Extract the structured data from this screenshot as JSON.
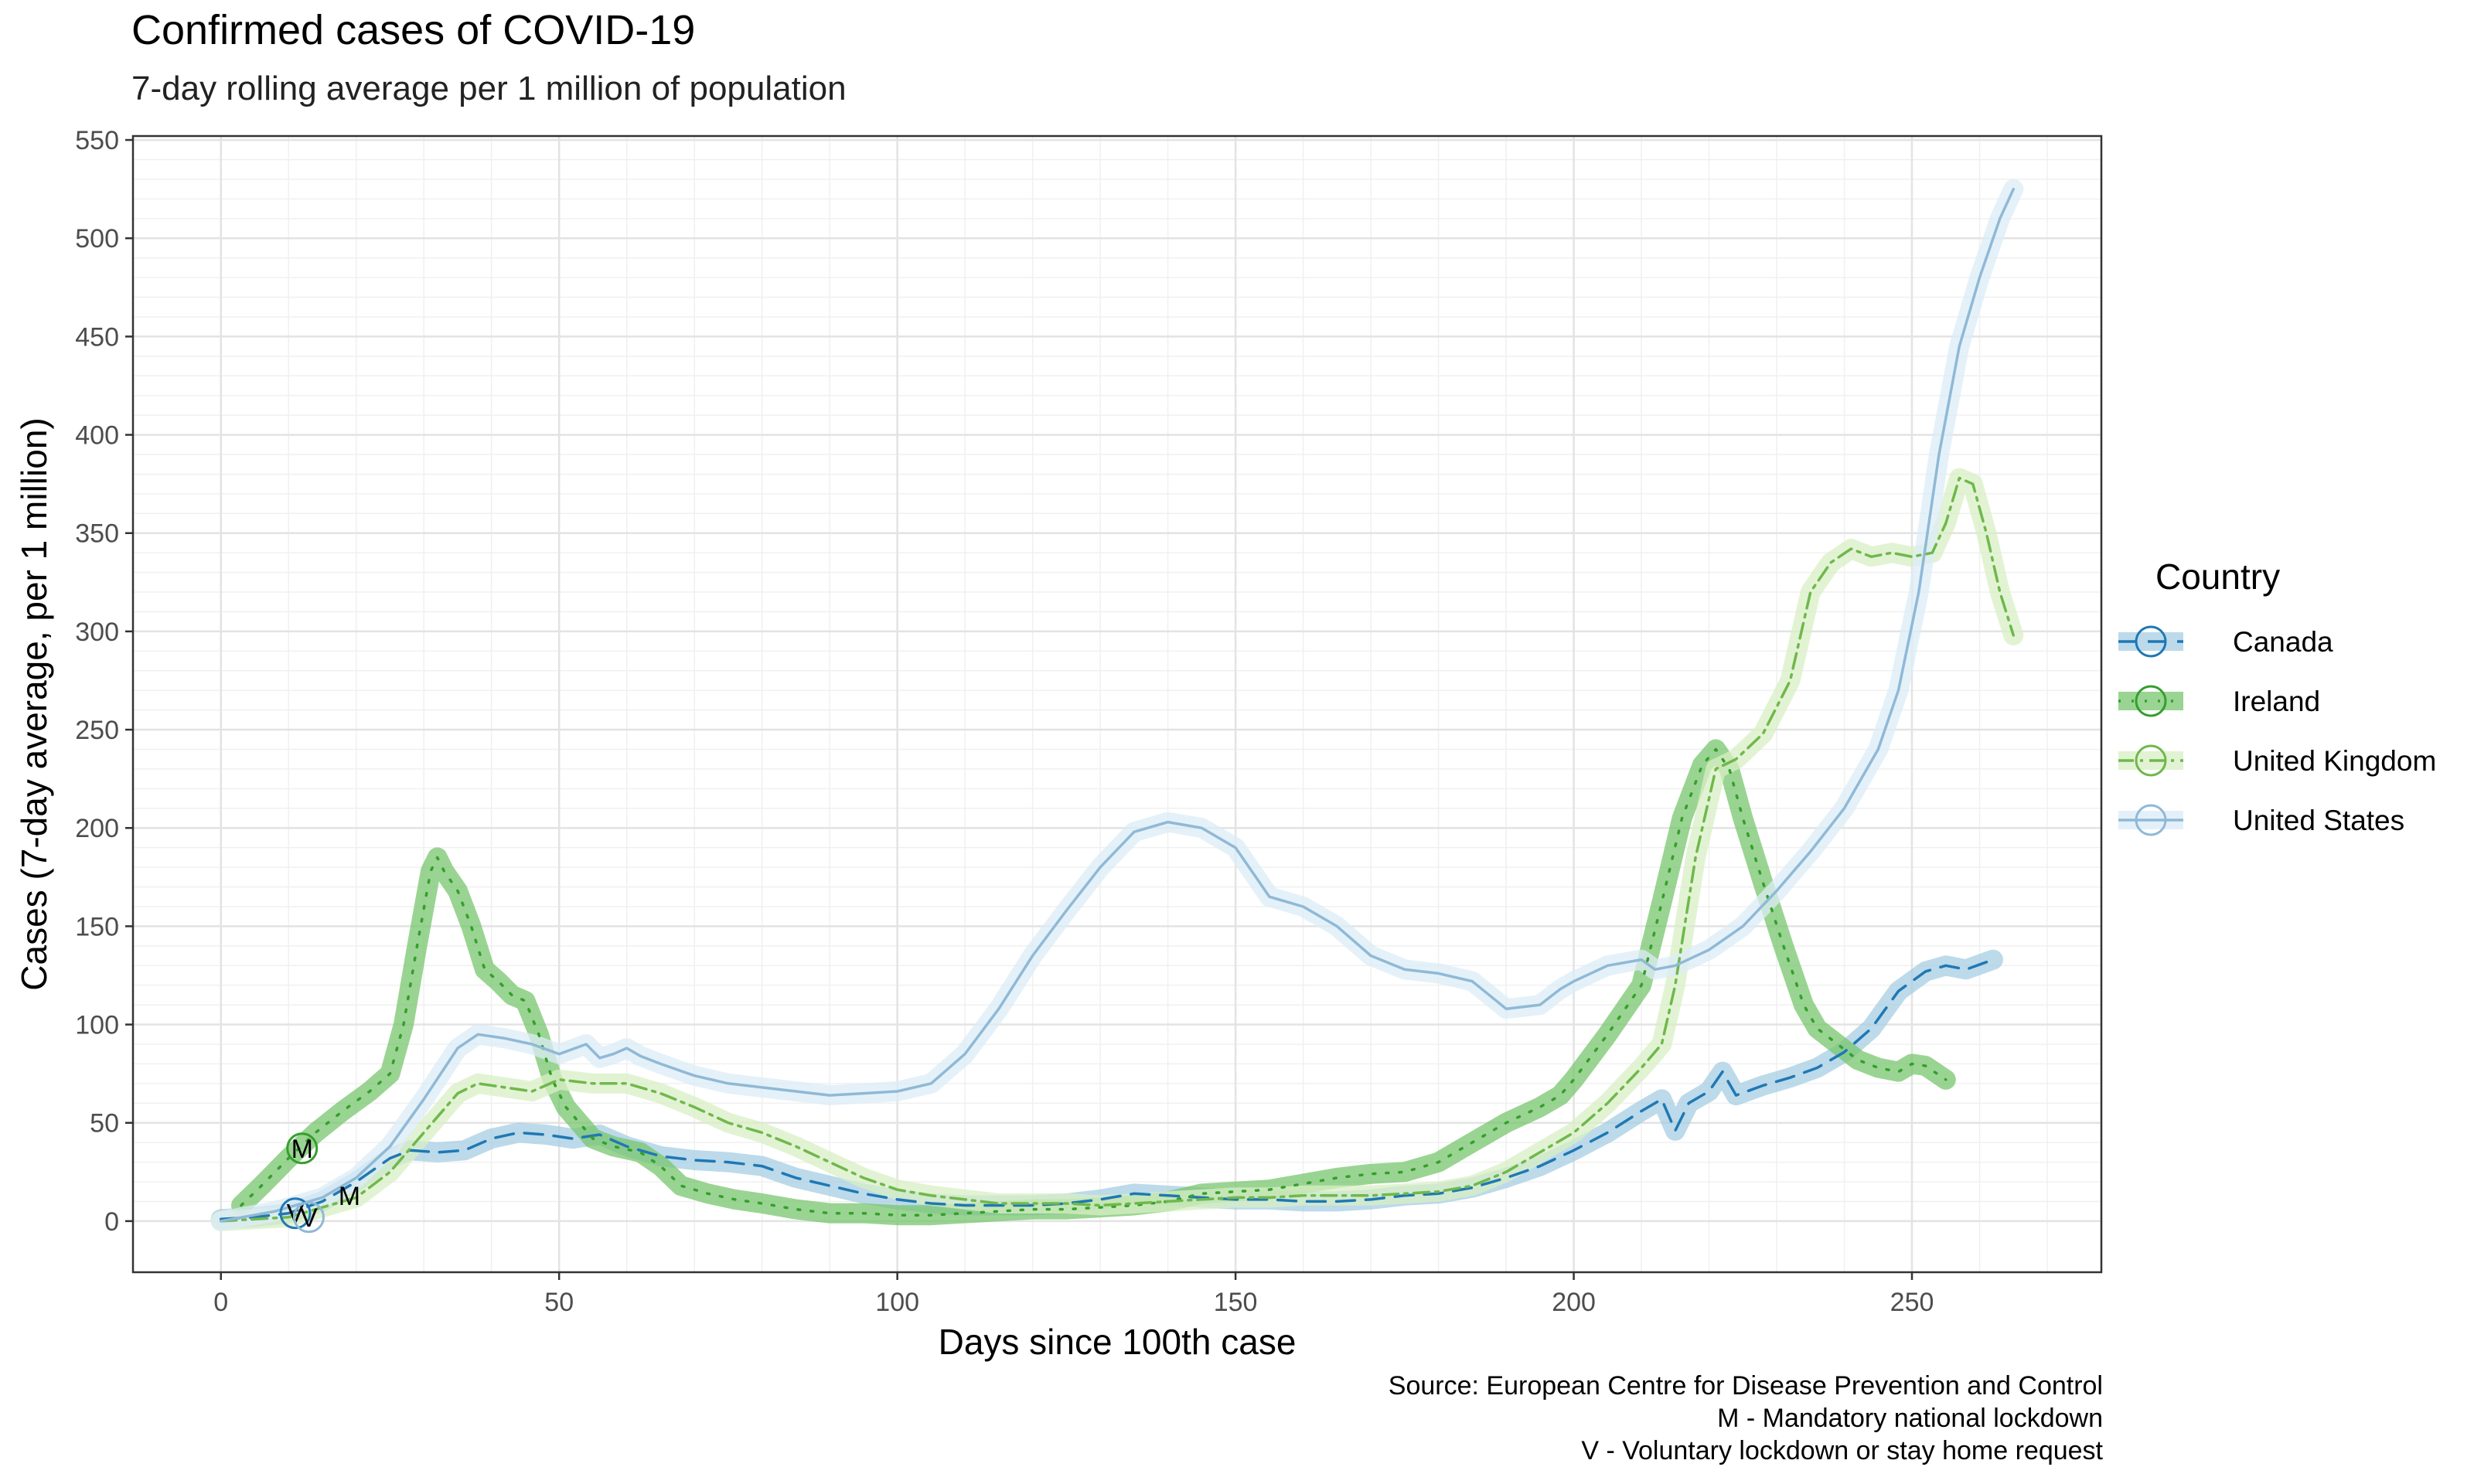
{
  "chart_data": {
    "type": "line",
    "title": "Confirmed cases of COVID-19",
    "subtitle": "7-day rolling average per 1 million of population",
    "xlabel": "Days since 100th case",
    "ylabel": "Cases (7-day average, per 1 million)",
    "xlim": [
      -13,
      278
    ],
    "ylim": [
      -26,
      552
    ],
    "xticks": [
      0,
      50,
      100,
      150,
      200,
      250
    ],
    "yticks": [
      0,
      50,
      100,
      150,
      200,
      250,
      300,
      350,
      400,
      450,
      500,
      550
    ],
    "grid": true,
    "legend": {
      "title": "Country",
      "position": "right"
    },
    "caption": [
      "Source: European Centre for Disease Prevention and Control",
      "M - Mandatory national lockdown",
      "V - Voluntary lockdown or stay home request"
    ],
    "series": [
      {
        "name": "Canada",
        "color": "#1f78b4",
        "band_color": "#a6cee3",
        "dash": "24,14",
        "points": [
          [
            0,
            1
          ],
          [
            5,
            2
          ],
          [
            10,
            4
          ],
          [
            15,
            10
          ],
          [
            20,
            20
          ],
          [
            25,
            32
          ],
          [
            28,
            36
          ],
          [
            32,
            35
          ],
          [
            36,
            36
          ],
          [
            40,
            42
          ],
          [
            44,
            45
          ],
          [
            48,
            44
          ],
          [
            52,
            42
          ],
          [
            56,
            44
          ],
          [
            60,
            38
          ],
          [
            65,
            33
          ],
          [
            70,
            31
          ],
          [
            75,
            30
          ],
          [
            80,
            28
          ],
          [
            85,
            22
          ],
          [
            90,
            18
          ],
          [
            95,
            14
          ],
          [
            100,
            11
          ],
          [
            105,
            9
          ],
          [
            110,
            8
          ],
          [
            115,
            8
          ],
          [
            120,
            8
          ],
          [
            125,
            9
          ],
          [
            130,
            11
          ],
          [
            135,
            14
          ],
          [
            140,
            13
          ],
          [
            145,
            12
          ],
          [
            150,
            11
          ],
          [
            155,
            11
          ],
          [
            160,
            10
          ],
          [
            165,
            10
          ],
          [
            170,
            11
          ],
          [
            175,
            13
          ],
          [
            180,
            14
          ],
          [
            185,
            17
          ],
          [
            190,
            22
          ],
          [
            195,
            28
          ],
          [
            200,
            36
          ],
          [
            205,
            45
          ],
          [
            210,
            56
          ],
          [
            213,
            62
          ],
          [
            215,
            46
          ],
          [
            217,
            60
          ],
          [
            220,
            66
          ],
          [
            222,
            76
          ],
          [
            224,
            64
          ],
          [
            228,
            69
          ],
          [
            232,
            73
          ],
          [
            236,
            78
          ],
          [
            240,
            86
          ],
          [
            244,
            98
          ],
          [
            248,
            117
          ],
          [
            252,
            127
          ],
          [
            255,
            130
          ],
          [
            258,
            128
          ],
          [
            262,
            133
          ]
        ]
      },
      {
        "name": "Ireland",
        "color": "#33a02c",
        "band_color": "#78c66e",
        "dash": "3,14",
        "points": [
          [
            3,
            8
          ],
          [
            6,
            18
          ],
          [
            10,
            32
          ],
          [
            14,
            45
          ],
          [
            18,
            56
          ],
          [
            22,
            66
          ],
          [
            25,
            75
          ],
          [
            27,
            100
          ],
          [
            29,
            140
          ],
          [
            31,
            178
          ],
          [
            32,
            185
          ],
          [
            33,
            178
          ],
          [
            35,
            168
          ],
          [
            37,
            150
          ],
          [
            39,
            128
          ],
          [
            41,
            122
          ],
          [
            43,
            115
          ],
          [
            45,
            112
          ],
          [
            47,
            95
          ],
          [
            49,
            72
          ],
          [
            51,
            58
          ],
          [
            53,
            50
          ],
          [
            55,
            42
          ],
          [
            58,
            38
          ],
          [
            62,
            35
          ],
          [
            65,
            28
          ],
          [
            68,
            18
          ],
          [
            72,
            14
          ],
          [
            76,
            11
          ],
          [
            80,
            9
          ],
          [
            85,
            6
          ],
          [
            90,
            4
          ],
          [
            95,
            4
          ],
          [
            100,
            3
          ],
          [
            105,
            3
          ],
          [
            110,
            4
          ],
          [
            115,
            5
          ],
          [
            120,
            6
          ],
          [
            125,
            6
          ],
          [
            130,
            7
          ],
          [
            135,
            8
          ],
          [
            140,
            10
          ],
          [
            145,
            14
          ],
          [
            150,
            15
          ],
          [
            155,
            16
          ],
          [
            160,
            19
          ],
          [
            165,
            22
          ],
          [
            170,
            24
          ],
          [
            175,
            25
          ],
          [
            180,
            30
          ],
          [
            185,
            40
          ],
          [
            190,
            50
          ],
          [
            195,
            58
          ],
          [
            198,
            64
          ],
          [
            200,
            72
          ],
          [
            205,
            95
          ],
          [
            210,
            120
          ],
          [
            213,
            162
          ],
          [
            216,
            205
          ],
          [
            219,
            232
          ],
          [
            221,
            240
          ],
          [
            223,
            230
          ],
          [
            225,
            205
          ],
          [
            228,
            172
          ],
          [
            231,
            140
          ],
          [
            234,
            110
          ],
          [
            236,
            98
          ],
          [
            239,
            90
          ],
          [
            242,
            82
          ],
          [
            245,
            78
          ],
          [
            248,
            76
          ],
          [
            250,
            80
          ],
          [
            252,
            79
          ],
          [
            255,
            72
          ]
        ]
      },
      {
        "name": "United Kingdom",
        "color": "#6fb84c",
        "band_color": "#d8efc4",
        "dash": "20,8,4,8",
        "points": [
          [
            0,
            0
          ],
          [
            10,
            2
          ],
          [
            20,
            12
          ],
          [
            25,
            25
          ],
          [
            30,
            45
          ],
          [
            35,
            65
          ],
          [
            38,
            70
          ],
          [
            42,
            68
          ],
          [
            46,
            66
          ],
          [
            50,
            72
          ],
          [
            55,
            70
          ],
          [
            60,
            70
          ],
          [
            65,
            65
          ],
          [
            70,
            58
          ],
          [
            75,
            50
          ],
          [
            80,
            45
          ],
          [
            85,
            38
          ],
          [
            90,
            30
          ],
          [
            95,
            22
          ],
          [
            100,
            16
          ],
          [
            105,
            13
          ],
          [
            110,
            11
          ],
          [
            115,
            9
          ],
          [
            120,
            9
          ],
          [
            125,
            9
          ],
          [
            130,
            8
          ],
          [
            135,
            9
          ],
          [
            140,
            10
          ],
          [
            145,
            11
          ],
          [
            150,
            12
          ],
          [
            155,
            12
          ],
          [
            160,
            13
          ],
          [
            165,
            13
          ],
          [
            170,
            13
          ],
          [
            175,
            14
          ],
          [
            180,
            15
          ],
          [
            185,
            18
          ],
          [
            190,
            25
          ],
          [
            195,
            35
          ],
          [
            200,
            45
          ],
          [
            205,
            60
          ],
          [
            210,
            78
          ],
          [
            213,
            90
          ],
          [
            215,
            120
          ],
          [
            218,
            185
          ],
          [
            221,
            230
          ],
          [
            224,
            235
          ],
          [
            228,
            248
          ],
          [
            232,
            275
          ],
          [
            235,
            320
          ],
          [
            238,
            335
          ],
          [
            241,
            342
          ],
          [
            244,
            338
          ],
          [
            247,
            340
          ],
          [
            250,
            338
          ],
          [
            253,
            340
          ],
          [
            255,
            355
          ],
          [
            257,
            378
          ],
          [
            259,
            375
          ],
          [
            261,
            350
          ],
          [
            263,
            320
          ],
          [
            265,
            298
          ]
        ]
      },
      {
        "name": "United States",
        "color": "#8fb9d6",
        "band_color": "#dcecf7",
        "dash": "",
        "points": [
          [
            0,
            0
          ],
          [
            8,
            5
          ],
          [
            15,
            12
          ],
          [
            20,
            22
          ],
          [
            25,
            38
          ],
          [
            30,
            62
          ],
          [
            35,
            88
          ],
          [
            38,
            95
          ],
          [
            42,
            93
          ],
          [
            46,
            90
          ],
          [
            50,
            85
          ],
          [
            54,
            90
          ],
          [
            56,
            83
          ],
          [
            58,
            85
          ],
          [
            60,
            88
          ],
          [
            62,
            84
          ],
          [
            65,
            80
          ],
          [
            70,
            74
          ],
          [
            75,
            70
          ],
          [
            80,
            68
          ],
          [
            85,
            66
          ],
          [
            90,
            64
          ],
          [
            95,
            65
          ],
          [
            100,
            66
          ],
          [
            105,
            70
          ],
          [
            110,
            85
          ],
          [
            115,
            108
          ],
          [
            120,
            135
          ],
          [
            125,
            158
          ],
          [
            130,
            180
          ],
          [
            135,
            198
          ],
          [
            140,
            203
          ],
          [
            145,
            200
          ],
          [
            150,
            190
          ],
          [
            153,
            175
          ],
          [
            155,
            165
          ],
          [
            160,
            160
          ],
          [
            165,
            150
          ],
          [
            170,
            135
          ],
          [
            175,
            128
          ],
          [
            180,
            126
          ],
          [
            185,
            122
          ],
          [
            190,
            108
          ],
          [
            195,
            110
          ],
          [
            198,
            118
          ],
          [
            200,
            122
          ],
          [
            205,
            130
          ],
          [
            210,
            133
          ],
          [
            212,
            128
          ],
          [
            215,
            130
          ],
          [
            220,
            138
          ],
          [
            225,
            150
          ],
          [
            230,
            168
          ],
          [
            235,
            188
          ],
          [
            240,
            210
          ],
          [
            245,
            240
          ],
          [
            248,
            270
          ],
          [
            251,
            320
          ],
          [
            254,
            390
          ],
          [
            257,
            445
          ],
          [
            260,
            480
          ],
          [
            263,
            510
          ],
          [
            265,
            525
          ]
        ]
      }
    ],
    "markers": [
      {
        "series": "Canada",
        "label": "V",
        "x": 11,
        "y": 4,
        "circle": true
      },
      {
        "series": "Ireland",
        "label": "M",
        "x": 12,
        "y": 37,
        "circle": true
      },
      {
        "series": "United Kingdom",
        "label": "M",
        "x": 19,
        "y": 13,
        "circle": false
      },
      {
        "series": "United States",
        "label": "V",
        "x": 13,
        "y": 2,
        "circle": true
      }
    ]
  }
}
